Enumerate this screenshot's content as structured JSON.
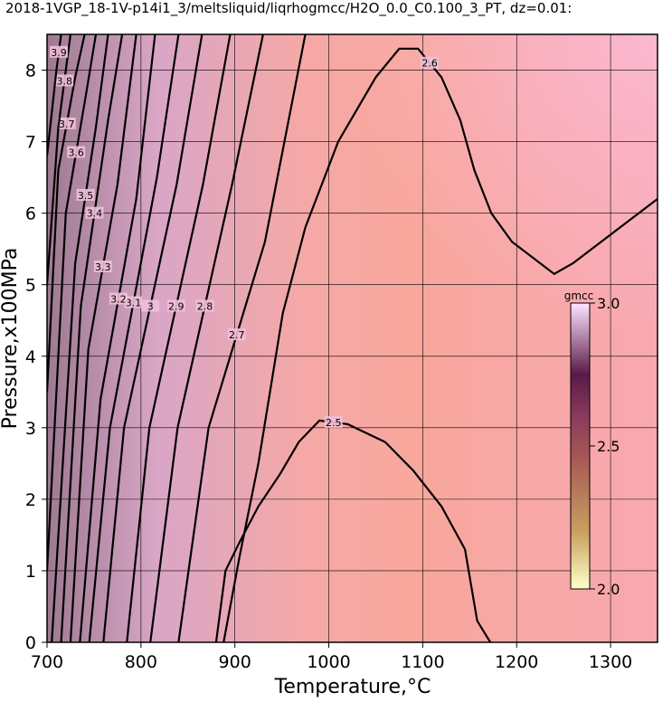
{
  "chart_data": {
    "type": "contour",
    "title": "2018-1VGP_18-1V-p14i1_3/meltsliquid/liqrhogmcc/H2O_0.0_C0.100_3_PT, dz=0.01:",
    "x_label": "Temperature,°C",
    "y_label": "Pressure,x100MPa",
    "xlim": [
      700,
      1350
    ],
    "ylim": [
      0,
      8.5
    ],
    "xticks": [
      700,
      800,
      900,
      1000,
      1100,
      1200,
      1300
    ],
    "yticks": [
      0,
      1,
      2,
      3,
      4,
      5,
      6,
      7,
      8
    ],
    "grid": true,
    "line_color": "#000000",
    "series": [
      {
        "name": "2.5",
        "x": [
          880,
          890,
          905,
          925,
          948,
          968,
          990,
          1020,
          1060,
          1090,
          1120,
          1145,
          1158,
          1172
        ],
        "y": [
          0,
          1.0,
          1.4,
          1.9,
          2.35,
          2.8,
          3.1,
          3.05,
          2.8,
          2.4,
          1.9,
          1.3,
          0.3,
          0
        ]
      },
      {
        "name": "2.6",
        "x": [
          888,
          905,
          925,
          951,
          975,
          1010,
          1050,
          1075,
          1095,
          1120,
          1140,
          1155,
          1173,
          1195,
          1240,
          1260,
          1300,
          1350
        ],
        "y": [
          0,
          1.2,
          2.5,
          4.6,
          5.8,
          7.0,
          7.9,
          8.3,
          8.3,
          7.9,
          7.3,
          6.6,
          6.0,
          5.6,
          5.15,
          5.3,
          5.7,
          6.2
        ]
      },
      {
        "name": "2.7",
        "x": [
          840,
          872,
          932,
          975
        ],
        "y": [
          0,
          3,
          5.6,
          8.5
        ]
      },
      {
        "name": "2.8",
        "x": [
          810,
          839,
          897,
          930
        ],
        "y": [
          0,
          3,
          6.4,
          8.5
        ]
      },
      {
        "name": "2.9",
        "x": [
          785,
          809,
          866,
          895
        ],
        "y": [
          0,
          3,
          6.4,
          8.5
        ]
      },
      {
        "name": "3",
        "x": [
          760,
          782,
          838,
          865
        ],
        "y": [
          0,
          3,
          6.4,
          8.5
        ]
      },
      {
        "name": "3.1",
        "x": [
          745,
          767,
          817,
          840
        ],
        "y": [
          0,
          3,
          6.5,
          8.5
        ]
      },
      {
        "name": "3.2",
        "x": [
          735,
          757,
          795,
          815
        ],
        "y": [
          0,
          3.4,
          6.2,
          8.5
        ]
      },
      {
        "name": "3.3",
        "x": [
          725,
          744,
          775,
          795
        ],
        "y": [
          0,
          4.1,
          6.4,
          8.5
        ]
      },
      {
        "name": "3.4",
        "x": [
          715,
          736,
          765,
          780
        ],
        "y": [
          0,
          4.7,
          7.3,
          8.5
        ]
      },
      {
        "name": "3.5",
        "x": [
          705,
          730,
          752,
          765
        ],
        "y": [
          0,
          5.3,
          7.2,
          8.5
        ]
      },
      {
        "name": "3.6",
        "x": [
          700,
          720,
          742,
          752
        ],
        "y": [
          1,
          6,
          7.7,
          8.5
        ]
      },
      {
        "name": "3.7",
        "x": [
          700,
          712,
          730,
          740
        ],
        "y": [
          3.5,
          6.6,
          7.9,
          8.5
        ]
      },
      {
        "name": "3.8",
        "x": [
          700,
          712,
          725
        ],
        "y": [
          5,
          7.2,
          8.5
        ]
      },
      {
        "name": "3.9",
        "x": [
          700,
          710,
          715
        ],
        "y": [
          6.8,
          8,
          8.5
        ]
      }
    ],
    "colorbar": {
      "label": "gmcc",
      "lim": [
        2.0,
        3.0
      ],
      "ticks": [
        {
          "value": 2,
          "label": "2.0"
        },
        {
          "value": 2.5,
          "label": "2.5"
        },
        {
          "value": 3,
          "label": "3.0"
        }
      ]
    }
  }
}
